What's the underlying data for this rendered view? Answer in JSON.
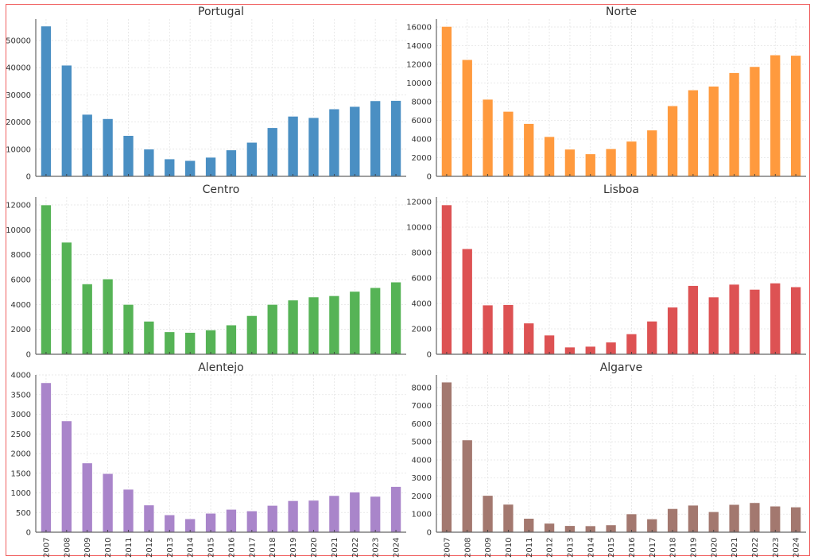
{
  "chart_data": [
    {
      "type": "bar",
      "title": "Portugal",
      "color": "#4a8fc3",
      "ylim": [
        0,
        57900
      ],
      "yticks": [
        0,
        10000,
        20000,
        30000,
        40000,
        50000
      ],
      "grid": true,
      "categories": [
        "2007",
        "2008",
        "2009",
        "2010",
        "2011",
        "2012",
        "2013",
        "2014",
        "2015",
        "2016",
        "2017",
        "2018",
        "2019",
        "2020",
        "2021",
        "2022",
        "2023",
        "2024"
      ],
      "values": [
        55300,
        40900,
        22800,
        21200,
        15000,
        10000,
        6400,
        5800,
        7000,
        9700,
        12500,
        17900,
        22100,
        21600,
        24800,
        25700,
        27800,
        27900
      ]
    },
    {
      "type": "bar",
      "title": "Norte",
      "color": "#ff9a3e",
      "ylim": [
        0,
        16850
      ],
      "yticks": [
        0,
        2000,
        4000,
        6000,
        8000,
        10000,
        12000,
        14000,
        16000
      ],
      "grid": true,
      "categories": [
        "2007",
        "2008",
        "2009",
        "2010",
        "2011",
        "2012",
        "2013",
        "2014",
        "2015",
        "2016",
        "2017",
        "2018",
        "2019",
        "2020",
        "2021",
        "2022",
        "2023",
        "2024"
      ],
      "values": [
        16050,
        12500,
        8250,
        6950,
        5650,
        4250,
        2900,
        2400,
        2950,
        3750,
        4950,
        7550,
        9250,
        9650,
        11100,
        11750,
        13000,
        12950
      ]
    },
    {
      "type": "bar",
      "title": "Centro",
      "color": "#56b356",
      "ylim": [
        0,
        12640
      ],
      "yticks": [
        0,
        2000,
        4000,
        6000,
        8000,
        10000,
        12000
      ],
      "grid": true,
      "categories": [
        "2007",
        "2008",
        "2009",
        "2010",
        "2011",
        "2012",
        "2013",
        "2014",
        "2015",
        "2016",
        "2017",
        "2018",
        "2019",
        "2020",
        "2021",
        "2022",
        "2023",
        "2024"
      ],
      "values": [
        12000,
        9000,
        5650,
        6050,
        4000,
        2650,
        1800,
        1750,
        1950,
        2350,
        3100,
        4000,
        4350,
        4600,
        4700,
        5050,
        5350,
        5800
      ]
    },
    {
      "type": "bar",
      "title": "Lisboa",
      "color": "#dd5253",
      "ylim": [
        0,
        12375
      ],
      "yticks": [
        0,
        2000,
        4000,
        6000,
        8000,
        10000,
        12000
      ],
      "grid": true,
      "categories": [
        "2007",
        "2008",
        "2009",
        "2010",
        "2011",
        "2012",
        "2013",
        "2014",
        "2015",
        "2016",
        "2017",
        "2018",
        "2019",
        "2020",
        "2021",
        "2022",
        "2023",
        "2024"
      ],
      "values": [
        11750,
        8300,
        3870,
        3900,
        2450,
        1500,
        560,
        620,
        950,
        1600,
        2600,
        3700,
        5400,
        4500,
        5500,
        5100,
        5600,
        5300
      ]
    },
    {
      "type": "bar",
      "title": "Alentejo",
      "color": "#a985ca",
      "ylim": [
        0,
        4000
      ],
      "yticks": [
        0,
        500,
        1000,
        1500,
        2000,
        2500,
        3000,
        3500,
        4000
      ],
      "grid": true,
      "categories": [
        "2007",
        "2008",
        "2009",
        "2010",
        "2011",
        "2012",
        "2013",
        "2014",
        "2015",
        "2016",
        "2017",
        "2018",
        "2019",
        "2020",
        "2021",
        "2022",
        "2023",
        "2024"
      ],
      "values": [
        3800,
        2830,
        1760,
        1490,
        1090,
        690,
        440,
        340,
        480,
        580,
        540,
        680,
        800,
        810,
        930,
        1020,
        910,
        1160
      ]
    },
    {
      "type": "bar",
      "title": "Algarve",
      "color": "#a3786f",
      "ylim": [
        0,
        8700
      ],
      "yticks": [
        0,
        1000,
        2000,
        3000,
        4000,
        5000,
        6000,
        7000,
        8000
      ],
      "grid": true,
      "categories": [
        "2007",
        "2008",
        "2009",
        "2010",
        "2011",
        "2012",
        "2013",
        "2014",
        "2015",
        "2016",
        "2017",
        "2018",
        "2019",
        "2020",
        "2021",
        "2022",
        "2023",
        "2024"
      ],
      "values": [
        8300,
        5100,
        2030,
        1540,
        760,
        490,
        360,
        350,
        400,
        1010,
        730,
        1300,
        1490,
        1130,
        1530,
        1630,
        1440,
        1390
      ]
    }
  ]
}
